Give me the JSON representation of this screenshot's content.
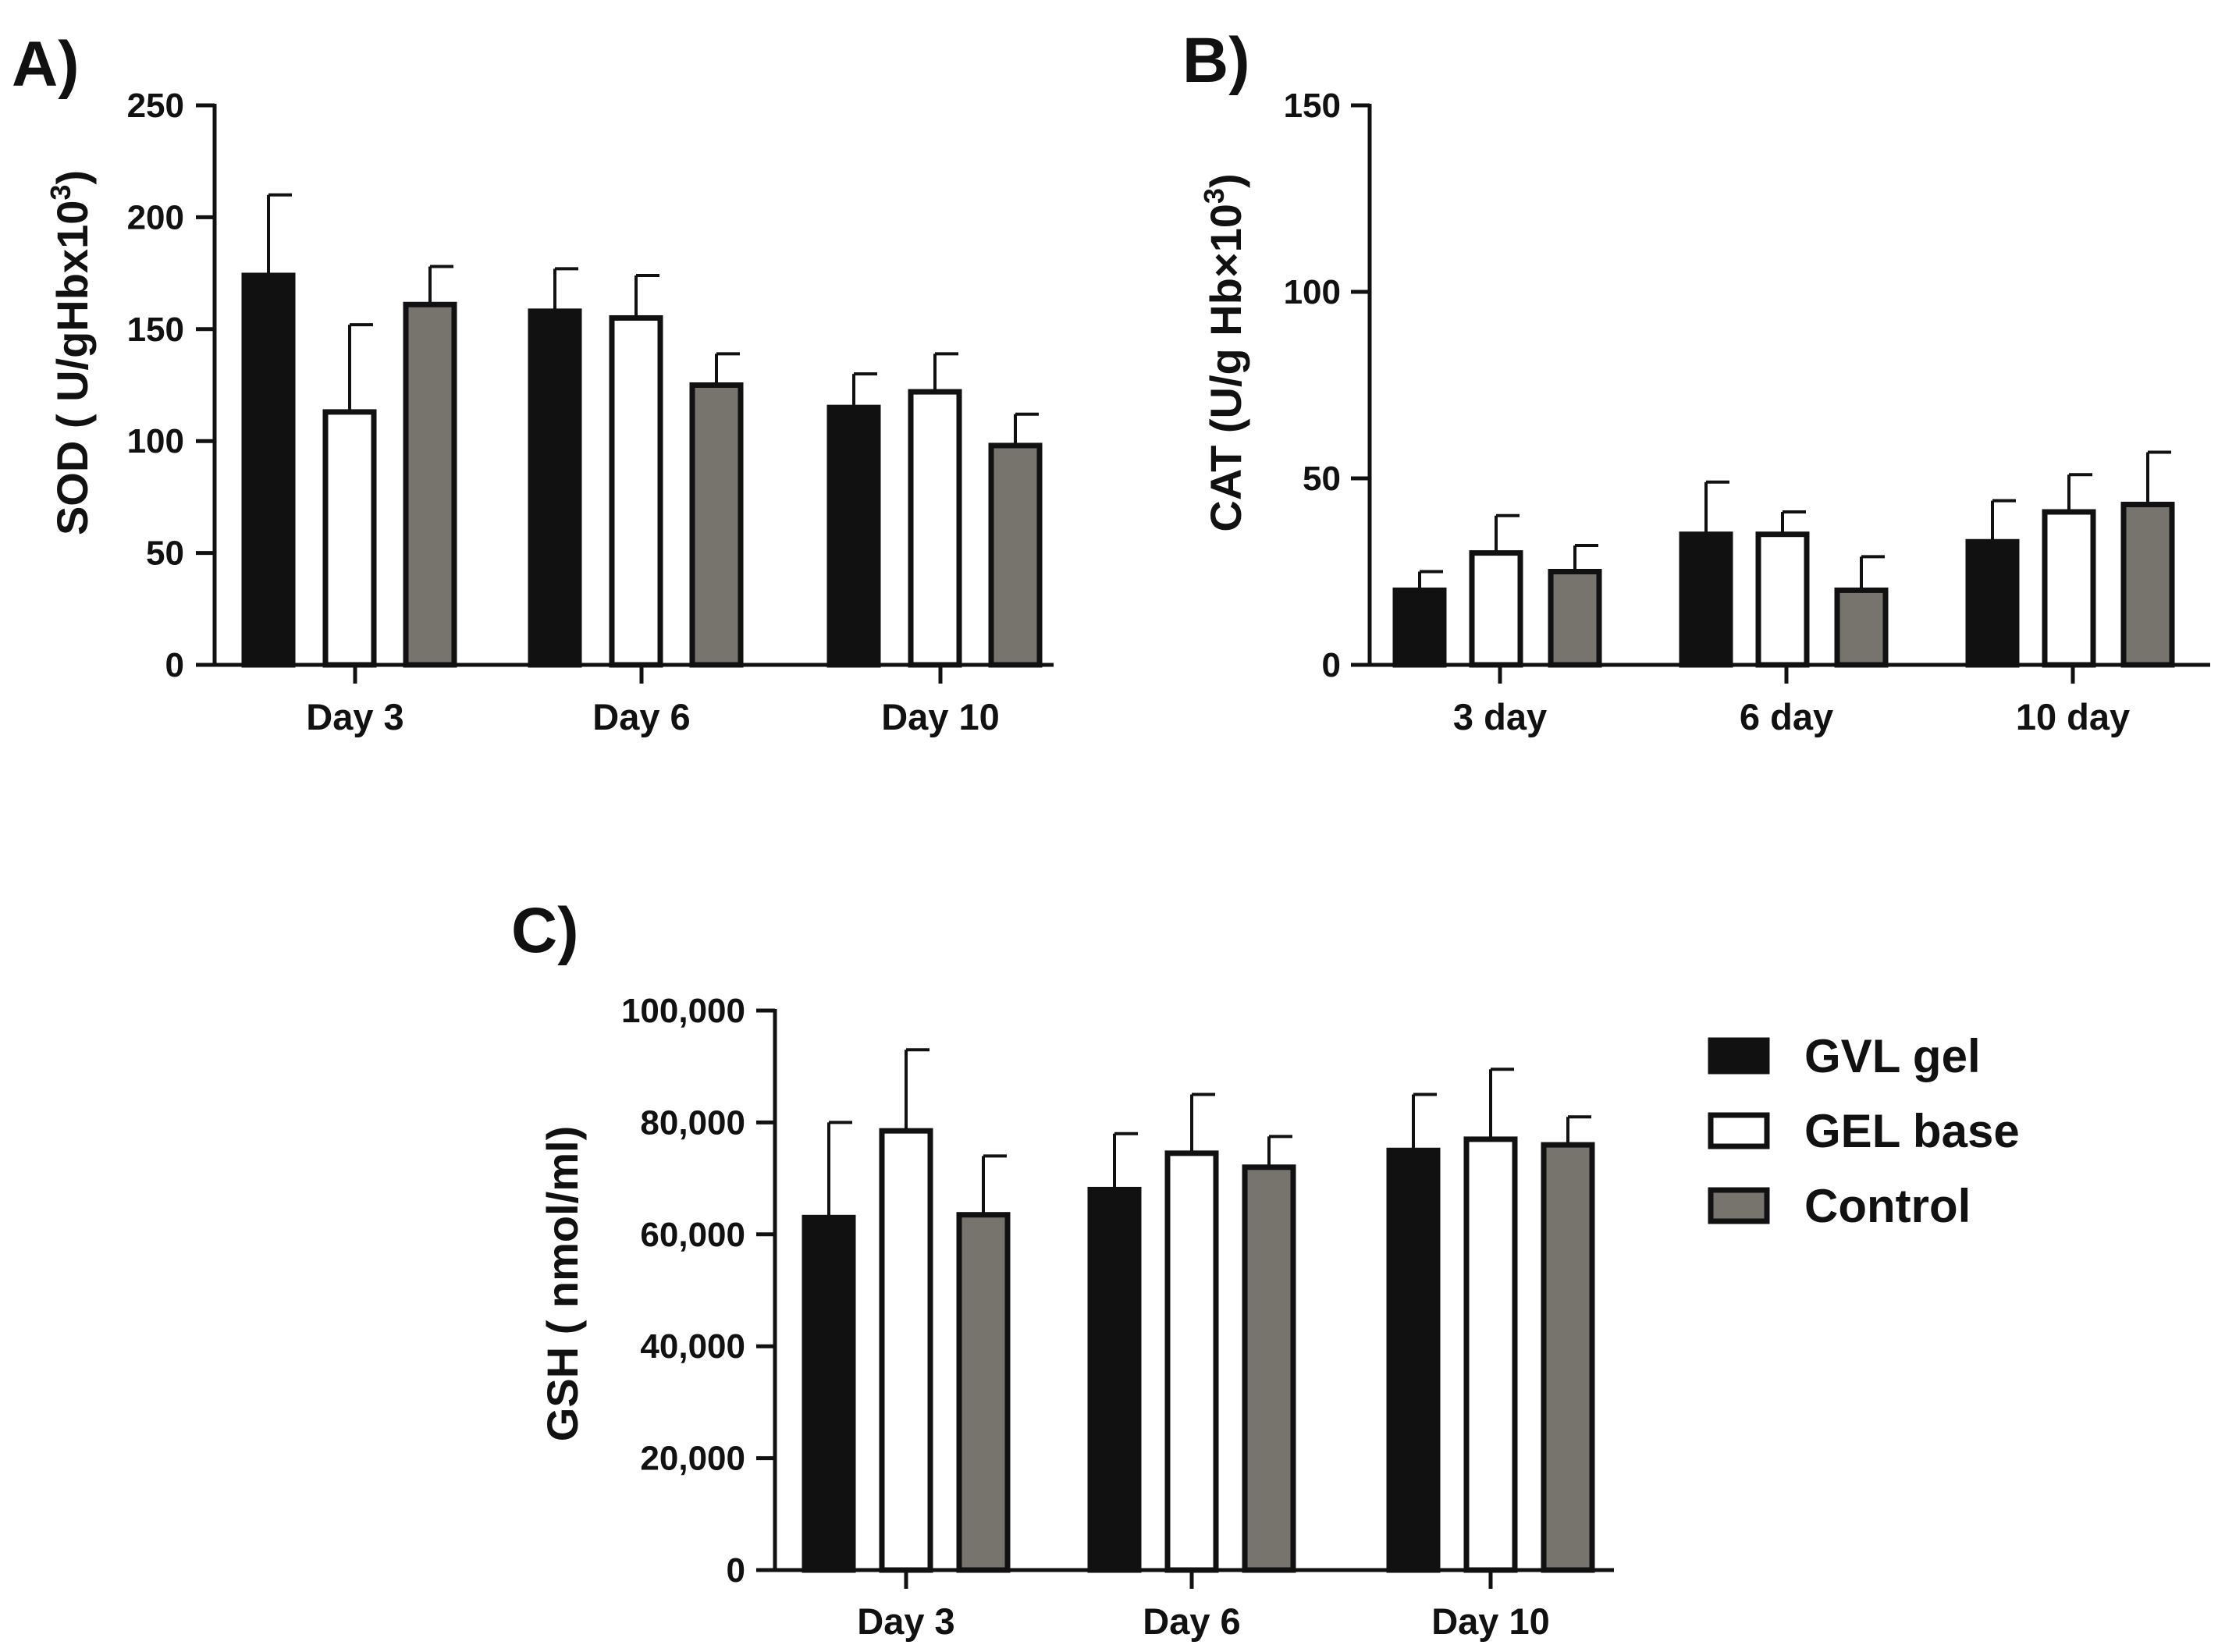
{
  "chart_data": [
    {
      "panel_label": "A)",
      "type": "bar",
      "ylabel": "SOD ( U/gHbx10",
      "ylabel_sup": "3",
      "ylabel_close": ")",
      "ylim": [
        0,
        250
      ],
      "yticks": [
        0,
        50,
        100,
        150,
        200,
        250
      ],
      "categories": [
        "Day 3",
        "Day 6",
        "Day 10"
      ],
      "series": [
        {
          "name": "GVL gel",
          "values": [
            174,
            158,
            115
          ],
          "errors": [
            36,
            19,
            15
          ]
        },
        {
          "name": "GEL base",
          "values": [
            113,
            155,
            122
          ],
          "errors": [
            39,
            19,
            17
          ]
        },
        {
          "name": "Control",
          "values": [
            161,
            125,
            98
          ],
          "errors": [
            17,
            14,
            14
          ]
        }
      ]
    },
    {
      "panel_label": "B)",
      "type": "bar",
      "ylabel": "CAT (U/g Hb×10",
      "ylabel_sup": "3",
      "ylabel_close": ")",
      "ylim": [
        0,
        150
      ],
      "yticks": [
        0,
        50,
        100,
        150
      ],
      "categories": [
        "3 day",
        "6 day",
        "10 day"
      ],
      "series": [
        {
          "name": "GVL gel",
          "values": [
            20,
            35,
            33
          ],
          "errors": [
            5,
            14,
            11
          ]
        },
        {
          "name": "GEL base",
          "values": [
            30,
            35,
            41
          ],
          "errors": [
            10,
            6,
            10
          ]
        },
        {
          "name": "Control",
          "values": [
            25,
            20,
            43
          ],
          "errors": [
            7,
            9,
            14
          ]
        }
      ]
    },
    {
      "panel_label": "C)",
      "type": "bar",
      "ylabel": "GSH ( nmol/ml)",
      "ylim": [
        0,
        100000
      ],
      "yticks": [
        0,
        20000,
        40000,
        60000,
        80000,
        100000
      ],
      "ytick_labels": [
        "0",
        "20,000",
        "40,000",
        "60,000",
        "80,000",
        "100,000"
      ],
      "categories": [
        "Day 3",
        "Day 6",
        "Day 10"
      ],
      "series": [
        {
          "name": "GVL gel",
          "values": [
            63000,
            68000,
            75000
          ],
          "errors": [
            17000,
            10000,
            10000
          ]
        },
        {
          "name": "GEL base",
          "values": [
            78500,
            74500,
            77000
          ],
          "errors": [
            14500,
            10500,
            12500
          ]
        },
        {
          "name": "Control",
          "values": [
            63500,
            72000,
            76000
          ],
          "errors": [
            10500,
            5500,
            5000
          ]
        }
      ]
    }
  ],
  "legend": {
    "placement": "right of panel C",
    "items": [
      {
        "label": "GVL gel",
        "color": "#111111"
      },
      {
        "label": "GEL base",
        "color": "#ffffff"
      },
      {
        "label": "Control",
        "color": "#77746e"
      }
    ]
  },
  "colors": {
    "gvl_gel": "#111111",
    "gel_base": "#ffffff",
    "control": "#77746e",
    "axis": "#111111"
  }
}
